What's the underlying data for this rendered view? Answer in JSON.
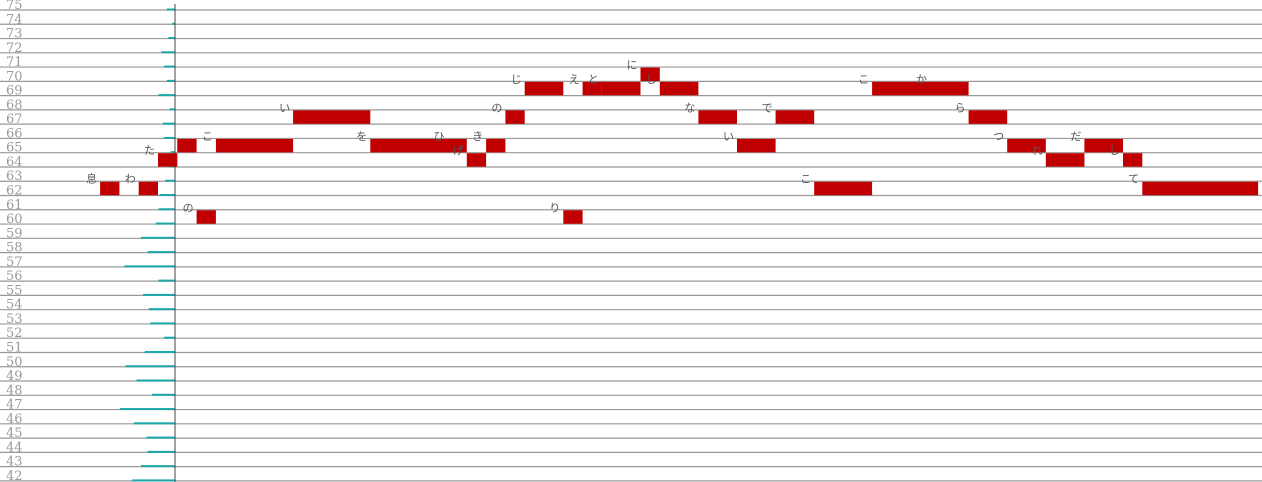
{
  "piano_roll": {
    "pitch_min": 42,
    "pitch_max": 75,
    "pitch_labels": [
      "42",
      "43",
      "44",
      "45",
      "46",
      "47",
      "48",
      "49",
      "50",
      "51",
      "52",
      "53",
      "54",
      "55",
      "56",
      "57",
      "58",
      "59",
      "60",
      "61",
      "62",
      "63",
      "64",
      "65",
      "66",
      "67",
      "68",
      "69",
      "70",
      "71",
      "72",
      "73",
      "74",
      "75"
    ],
    "colors": {
      "note": "#c00000",
      "grid_line": "#999999",
      "histogram": "#1aa7a7",
      "axis": "#444444",
      "pitch_label": "#9a9a9a"
    },
    "histogram": [
      {
        "pitch": 42,
        "value": 0.78
      },
      {
        "pitch": 43,
        "value": 0.62
      },
      {
        "pitch": 44,
        "value": 0.5
      },
      {
        "pitch": 45,
        "value": 0.52
      },
      {
        "pitch": 46,
        "value": 0.75
      },
      {
        "pitch": 47,
        "value": 1.0
      },
      {
        "pitch": 48,
        "value": 0.42
      },
      {
        "pitch": 49,
        "value": 0.7
      },
      {
        "pitch": 50,
        "value": 0.9
      },
      {
        "pitch": 51,
        "value": 0.55
      },
      {
        "pitch": 52,
        "value": 0.2
      },
      {
        "pitch": 53,
        "value": 0.45
      },
      {
        "pitch": 54,
        "value": 0.48
      },
      {
        "pitch": 55,
        "value": 0.58
      },
      {
        "pitch": 56,
        "value": 0.3
      },
      {
        "pitch": 57,
        "value": 0.92
      },
      {
        "pitch": 58,
        "value": 0.5
      },
      {
        "pitch": 59,
        "value": 0.62
      },
      {
        "pitch": 60,
        "value": 0.35
      },
      {
        "pitch": 61,
        "value": 0.3
      },
      {
        "pitch": 62,
        "value": 0.28
      },
      {
        "pitch": 63,
        "value": 0.18
      },
      {
        "pitch": 64,
        "value": 0.1
      },
      {
        "pitch": 65,
        "value": 0.08
      },
      {
        "pitch": 66,
        "value": 0.2
      },
      {
        "pitch": 67,
        "value": 0.22
      },
      {
        "pitch": 68,
        "value": 0.1
      },
      {
        "pitch": 69,
        "value": 0.3
      },
      {
        "pitch": 70,
        "value": 0.15
      },
      {
        "pitch": 71,
        "value": 0.2
      },
      {
        "pitch": 72,
        "value": 0.25
      },
      {
        "pitch": 73,
        "value": 0.12
      },
      {
        "pitch": 74,
        "value": 0.05
      },
      {
        "pitch": 75,
        "value": 0.15
      }
    ],
    "notes": [
      {
        "lyric": "息",
        "pitch": 63,
        "start": -3,
        "duration": 1
      },
      {
        "lyric": "わ",
        "pitch": 63,
        "start": -1,
        "duration": 1
      },
      {
        "lyric": "た",
        "pitch": 65,
        "start": 0,
        "duration": 1
      },
      {
        "lyric": "",
        "pitch": 66,
        "start": 1,
        "duration": 1
      },
      {
        "lyric": "の",
        "pitch": 61,
        "start": 2,
        "duration": 1
      },
      {
        "lyric": "こ",
        "pitch": 66,
        "start": 3,
        "duration": 4
      },
      {
        "lyric": "い",
        "pitch": 68,
        "start": 7,
        "duration": 4
      },
      {
        "lyric": "を",
        "pitch": 66,
        "start": 11,
        "duration": 4
      },
      {
        "lyric": "ひ",
        "pitch": 66,
        "start": 15,
        "duration": 1
      },
      {
        "lyric": "げ",
        "pitch": 65,
        "start": 16,
        "duration": 1
      },
      {
        "lyric": "き",
        "pitch": 66,
        "start": 17,
        "duration": 1
      },
      {
        "lyric": "の",
        "pitch": 68,
        "start": 18,
        "duration": 1
      },
      {
        "lyric": "じ",
        "pitch": 70,
        "start": 19,
        "duration": 2
      },
      {
        "lyric": "り",
        "pitch": 61,
        "start": 21,
        "duration": 1
      },
      {
        "lyric": "え",
        "pitch": 70,
        "start": 22,
        "duration": 1
      },
      {
        "lyric": "と",
        "pitch": 70,
        "start": 23,
        "duration": 2
      },
      {
        "lyric": "に",
        "pitch": 71,
        "start": 25,
        "duration": 1
      },
      {
        "lyric": "し",
        "pitch": 70,
        "start": 26,
        "duration": 2
      },
      {
        "lyric": "な",
        "pitch": 68,
        "start": 28,
        "duration": 2
      },
      {
        "lyric": "い",
        "pitch": 66,
        "start": 30,
        "duration": 2
      },
      {
        "lyric": "で",
        "pitch": 68,
        "start": 32,
        "duration": 2
      },
      {
        "lyric": "こ",
        "pitch": 63,
        "start": 34,
        "duration": 3
      },
      {
        "lyric": "こ",
        "pitch": 70,
        "start": 37,
        "duration": 3
      },
      {
        "lyric": "か",
        "pitch": 70,
        "start": 40,
        "duration": 2
      },
      {
        "lyric": "ら",
        "pitch": 68,
        "start": 42,
        "duration": 2
      },
      {
        "lyric": "つ",
        "pitch": 66,
        "start": 44,
        "duration": 2
      },
      {
        "lyric": "れ",
        "pitch": 65,
        "start": 46,
        "duration": 2
      },
      {
        "lyric": "だ",
        "pitch": 66,
        "start": 48,
        "duration": 2
      },
      {
        "lyric": "し",
        "pitch": 65,
        "start": 50,
        "duration": 1
      },
      {
        "lyric": "て",
        "pitch": 63,
        "start": 51,
        "duration": 6
      }
    ]
  }
}
